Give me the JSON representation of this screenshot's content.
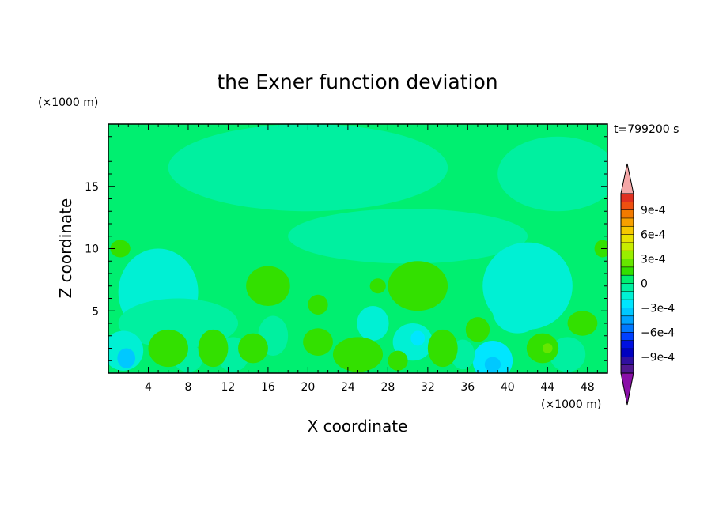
{
  "chart_data": {
    "type": "heatmap",
    "title": "the Exner function deviation",
    "xlabel": "X coordinate",
    "ylabel": "Z coordinate",
    "x_unit_label": "(×1000 m)",
    "y_unit_label": "(×1000 m)",
    "time_label": "t=799200 s",
    "xlim": [
      0,
      50
    ],
    "ylim": [
      0,
      20
    ],
    "x_ticks": [
      4,
      8,
      12,
      16,
      20,
      24,
      28,
      32,
      36,
      40,
      44,
      48
    ],
    "y_ticks": [
      5,
      10,
      15
    ],
    "grid": false,
    "legend_position": "right",
    "colorbar": {
      "min": -0.0011,
      "max": 0.0011,
      "step": 0.0001,
      "labels": [
        {
          "value": 0.0009,
          "text": "9e-4"
        },
        {
          "value": 0.0006,
          "text": "6e-4"
        },
        {
          "value": 0.0003,
          "text": "3e-4"
        },
        {
          "value": 0,
          "text": "0"
        },
        {
          "value": -0.0003,
          "text": "−3e-4"
        },
        {
          "value": -0.0006,
          "text": "−6e-4"
        },
        {
          "value": -0.0009,
          "text": "−9e-4"
        }
      ],
      "colors_high_to_low": [
        "#e03020",
        "#ee5010",
        "#f27a00",
        "#f7a000",
        "#f5c800",
        "#e7e200",
        "#c8ec00",
        "#99ee00",
        "#66e600",
        "#33e000",
        "#00ef70",
        "#00f0a0",
        "#00f0d4",
        "#00e6ff",
        "#00c8ff",
        "#00a4ff",
        "#0078ff",
        "#0040ff",
        "#0010e0",
        "#0000c0",
        "#3010a0",
        "#501890"
      ],
      "over_color": "#f4a7a7",
      "under_color": "#8a10a8"
    },
    "field": {
      "background_value": 4e-05,
      "regions": [
        {
          "x": 20,
          "y": 16.5,
          "rx": 14,
          "ry": 3.5,
          "value": -5e-05
        },
        {
          "x": 30,
          "y": 11,
          "rx": 12,
          "ry": 2.2,
          "value": -5e-05
        },
        {
          "x": 45,
          "y": 16,
          "rx": 6,
          "ry": 3,
          "value": -5e-05
        },
        {
          "x": 5,
          "y": 6.5,
          "rx": 4,
          "ry": 3.5,
          "value": -0.00012
        },
        {
          "x": 5,
          "y": 7,
          "rx": 2.2,
          "ry": 1.5,
          "value": -0.00018
        },
        {
          "x": 7,
          "y": 4,
          "rx": 6,
          "ry": 2,
          "value": -8e-05
        },
        {
          "x": 42,
          "y": 7,
          "rx": 4.5,
          "ry": 3.5,
          "value": -0.00012
        },
        {
          "x": 41,
          "y": 5,
          "rx": 2.5,
          "ry": 1.8,
          "value": -0.00018
        },
        {
          "x": 1.5,
          "y": 1.8,
          "rx": 2,
          "ry": 1.6,
          "value": -0.0002
        },
        {
          "x": 1.8,
          "y": 1.2,
          "rx": 0.9,
          "ry": 0.8,
          "value": -0.00035
        },
        {
          "x": 38.5,
          "y": 1,
          "rx": 2,
          "ry": 1.6,
          "value": -0.00025
        },
        {
          "x": 38.5,
          "y": 0.7,
          "rx": 0.8,
          "ry": 0.6,
          "value": -0.0004
        },
        {
          "x": 30.5,
          "y": 2.5,
          "rx": 2,
          "ry": 1.5,
          "value": -0.00018
        },
        {
          "x": 31,
          "y": 2.8,
          "rx": 0.7,
          "ry": 0.6,
          "value": -0.0003
        },
        {
          "x": 26.5,
          "y": 4,
          "rx": 1.6,
          "ry": 1.4,
          "value": -0.00012
        },
        {
          "x": 16.5,
          "y": 3,
          "rx": 1.5,
          "ry": 1.6,
          "value": -0.0001
        },
        {
          "x": 12.5,
          "y": 1.5,
          "rx": 1.6,
          "ry": 1.4,
          "value": -0.0001
        },
        {
          "x": 35.5,
          "y": 1.5,
          "rx": 1.2,
          "ry": 1.2,
          "value": -0.0001
        },
        {
          "x": 46,
          "y": 1.5,
          "rx": 1.8,
          "ry": 1.4,
          "value": -0.0001
        },
        {
          "x": 8,
          "y": 1.2,
          "rx": 1.5,
          "ry": 1.1,
          "value": -0.0001
        },
        {
          "x": 31,
          "y": 7,
          "rx": 3,
          "ry": 2,
          "value": 0.00016
        },
        {
          "x": 16,
          "y": 7,
          "rx": 2.2,
          "ry": 1.6,
          "value": 0.00016
        },
        {
          "x": 27,
          "y": 7,
          "rx": 0.8,
          "ry": 0.6,
          "value": 0.00016
        },
        {
          "x": 21,
          "y": 5.5,
          "rx": 1,
          "ry": 0.8,
          "value": 0.00016
        },
        {
          "x": 47.5,
          "y": 4,
          "rx": 1.5,
          "ry": 1,
          "value": 0.00016
        },
        {
          "x": 43.5,
          "y": 2,
          "rx": 1.6,
          "ry": 1.2,
          "value": 0.00016
        },
        {
          "x": 44,
          "y": 2,
          "rx": 0.5,
          "ry": 0.4,
          "value": 0.00028
        },
        {
          "x": 25,
          "y": 1.5,
          "rx": 2.5,
          "ry": 1.4,
          "value": 0.00016
        },
        {
          "x": 6,
          "y": 2,
          "rx": 2,
          "ry": 1.5,
          "value": 0.00016
        },
        {
          "x": 10.5,
          "y": 2,
          "rx": 1.5,
          "ry": 1.5,
          "value": 0.00016
        },
        {
          "x": 14.5,
          "y": 2,
          "rx": 1.5,
          "ry": 1.2,
          "value": 0.00016
        },
        {
          "x": 21,
          "y": 2.5,
          "rx": 1.5,
          "ry": 1.1,
          "value": 0.00016
        },
        {
          "x": 29,
          "y": 1,
          "rx": 1,
          "ry": 0.8,
          "value": 0.00016
        },
        {
          "x": 33.5,
          "y": 2,
          "rx": 1.5,
          "ry": 1.5,
          "value": 0.00016
        },
        {
          "x": 37,
          "y": 3.5,
          "rx": 1.2,
          "ry": 1,
          "value": 0.00016
        },
        {
          "x": 1.2,
          "y": 10,
          "rx": 1,
          "ry": 0.7,
          "value": 0.00016
        },
        {
          "x": 49.5,
          "y": 10,
          "rx": 0.8,
          "ry": 0.7,
          "value": 0.00016
        }
      ]
    }
  }
}
